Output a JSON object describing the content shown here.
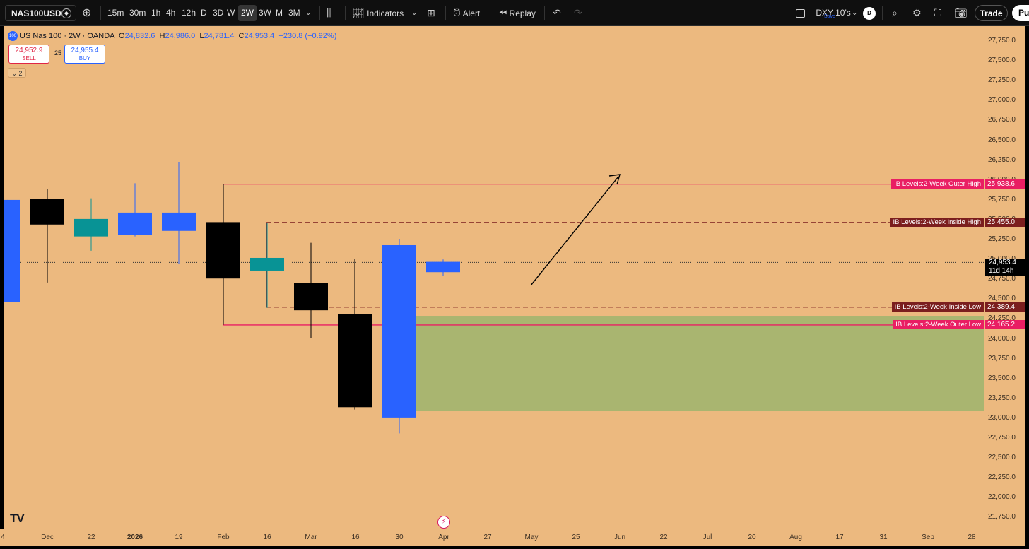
{
  "toolbar": {
    "symbol": "NAS100USD",
    "intervals": [
      "15m",
      "30m",
      "1h",
      "4h",
      "12h",
      "D",
      "3D",
      "W",
      "2W",
      "3W",
      "M",
      "3M"
    ],
    "active_interval": "2W",
    "indicators_label": "Indicators",
    "alert_label": "Alert",
    "replay_label": "Replay",
    "layout_name": "DXY 10's",
    "layout_status": "Save",
    "avatar_letter": "D",
    "trade_label": "Trade",
    "publish_label": "Pu"
  },
  "legend": {
    "badge": "100",
    "title": "US Nas 100 · 2W · OANDA",
    "o_label": "O",
    "o": "24,832.6",
    "h_label": "H",
    "h": "24,986.0",
    "l_label": "L",
    "l": "24,781.4",
    "c_label": "C",
    "c": "24,953.4",
    "change": "−230.8 (−0.92%)",
    "sell_price": "24,952.9",
    "sell_label": "SELL",
    "buy_price": "24,955.4",
    "buy_label": "BUY",
    "spread": "25",
    "collapse_count": "2"
  },
  "price_axis": {
    "ticks": [
      "27,750.0",
      "27,500.0",
      "27,250.0",
      "27,000.0",
      "26,750.0",
      "26,500.0",
      "26,250.0",
      "26,000.0",
      "25,750.0",
      "25,500.0",
      "25,250.0",
      "25,000.0",
      "24,750.0",
      "24,500.0",
      "24,250.0",
      "24,000.0",
      "23,750.0",
      "23,500.0",
      "23,250.0",
      "23,000.0",
      "22,750.0",
      "22,500.0",
      "22,250.0",
      "22,000.0",
      "21,750.0"
    ],
    "current_price": "24,953.4",
    "countdown": "11d 14h"
  },
  "time_axis": [
    "Dec",
    "22",
    "2026",
    "19",
    "Feb",
    "16",
    "Mar",
    "16",
    "30",
    "Apr",
    "27",
    "May",
    "25",
    "Jun",
    "22",
    "Jul",
    "20",
    "Aug",
    "17",
    "31",
    "Sep",
    "28"
  ],
  "levels": [
    {
      "name": "IB Levels:2-Week Outer High",
      "value": "25,938.6",
      "price": 25938.6,
      "color": "#e91e63",
      "style": "solid"
    },
    {
      "name": "IB Levels:2-Week Inside High",
      "value": "25,455.0",
      "price": 25455.0,
      "color": "#7b1e1e",
      "style": "dashed"
    },
    {
      "name": "IB Levels:2-Week Inside Low",
      "value": "24,389.4",
      "price": 24389.4,
      "color": "#7b1e1e",
      "style": "dashed"
    },
    {
      "name": "IB Levels:2-Week Outer Low",
      "value": "24,165.2",
      "price": 24165.2,
      "color": "#e91e63",
      "style": "solid"
    }
  ],
  "colors": {
    "up": "#2962ff",
    "down": "#000000",
    "inside": "#089395",
    "zone": "#a9b570",
    "background": "#ecb97f"
  },
  "watermark": "TV",
  "chart_data": {
    "type": "candlestick",
    "candles": [
      {
        "o": 24450,
        "h": 25740,
        "l": 24450,
        "c": 25740,
        "kind": "up"
      },
      {
        "o": 25750,
        "h": 25880,
        "l": 24700,
        "c": 25430,
        "kind": "down"
      },
      {
        "o": 25280,
        "h": 25760,
        "l": 25100,
        "c": 25500,
        "kind": "inside"
      },
      {
        "o": 25300,
        "h": 25950,
        "l": 25280,
        "c": 25580,
        "kind": "up"
      },
      {
        "o": 25350,
        "h": 26220,
        "l": 24930,
        "c": 25580,
        "kind": "up"
      },
      {
        "o": 25460,
        "h": 25940,
        "l": 24170,
        "c": 24750,
        "kind": "down"
      },
      {
        "o": 24850,
        "h": 25450,
        "l": 24380,
        "c": 25010,
        "kind": "inside"
      },
      {
        "o": 24690,
        "h": 25200,
        "l": 24000,
        "c": 24350,
        "kind": "down"
      },
      {
        "o": 24300,
        "h": 25000,
        "l": 23100,
        "c": 23130,
        "kind": "down"
      },
      {
        "o": 23000,
        "h": 25250,
        "l": 22800,
        "c": 25170,
        "kind": "up"
      },
      {
        "o": 24830,
        "h": 24990,
        "l": 24780,
        "c": 24960,
        "kind": "up"
      }
    ],
    "demand_zone": [
      23080,
      24280
    ],
    "ylim": [
      21600,
      27900
    ]
  }
}
